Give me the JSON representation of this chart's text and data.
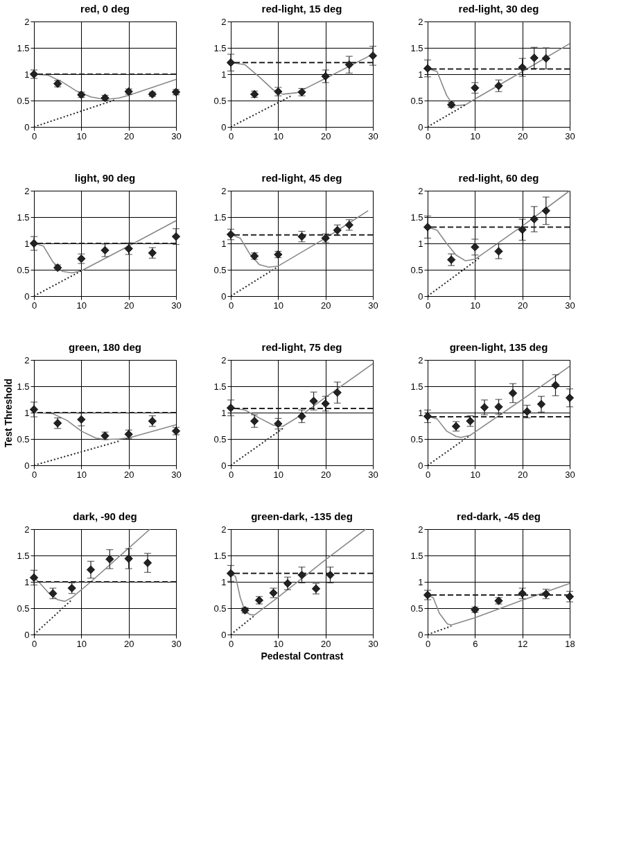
{
  "chart_data": [
    {
      "type": "scatter",
      "title": "red, 0 deg",
      "xlim": [
        0,
        30
      ],
      "xticks": [
        0,
        10,
        20,
        30
      ],
      "ylim": [
        0,
        2
      ],
      "yticks": [
        0,
        0.5,
        1,
        1.5,
        2
      ],
      "grid": true,
      "ref_lines": [
        {
          "axis": "y",
          "value": 1.0,
          "line_style": "dashed",
          "color": "#222222"
        }
      ],
      "series": [
        {
          "type": "line",
          "color": "#888888",
          "line_style": "solid",
          "marker": "none",
          "x": [
            0,
            3,
            6,
            9,
            12,
            15,
            18,
            20,
            25,
            30
          ],
          "values": [
            1,
            0.98,
            0.85,
            0.68,
            0.57,
            0.52,
            0.55,
            0.6,
            0.75,
            0.9
          ]
        },
        {
          "type": "line",
          "color": "#222222",
          "line_style": "dotted",
          "marker": "none",
          "x": [
            0,
            17
          ],
          "values": [
            0,
            0.51
          ]
        },
        {
          "color": "#222222",
          "marker": "diamond",
          "x": [
            0,
            5,
            10,
            15,
            20,
            25,
            30
          ],
          "values": [
            1.0,
            0.82,
            0.61,
            0.55,
            0.67,
            0.62,
            0.66
          ],
          "errors": [
            0.08,
            0.06,
            0.05,
            0.05,
            0.05,
            0.04,
            0.05
          ]
        }
      ]
    },
    {
      "type": "scatter",
      "title": "red-light, 15 deg",
      "xlim": [
        0,
        30
      ],
      "xticks": [
        0,
        10,
        20,
        30
      ],
      "ylim": [
        0,
        2
      ],
      "yticks": [
        0,
        0.5,
        1,
        1.5,
        2
      ],
      "grid": true,
      "ref_lines": [
        {
          "axis": "y",
          "value": 1.22,
          "line_style": "dashed",
          "color": "#222222"
        }
      ],
      "series": [
        {
          "type": "line",
          "color": "#888888",
          "line_style": "solid",
          "marker": "none",
          "x": [
            0,
            3,
            6,
            9,
            11,
            14,
            20,
            25,
            30
          ],
          "values": [
            1.22,
            1.18,
            0.95,
            0.7,
            0.62,
            0.65,
            0.92,
            1.15,
            1.38
          ]
        },
        {
          "type": "line",
          "color": "#222222",
          "line_style": "dotted",
          "marker": "none",
          "x": [
            0,
            13
          ],
          "values": [
            0,
            0.6
          ]
        },
        {
          "color": "#222222",
          "marker": "diamond",
          "x": [
            0,
            5,
            10,
            15,
            20,
            25,
            30
          ],
          "values": [
            1.22,
            0.62,
            0.67,
            0.66,
            0.96,
            1.18,
            1.35
          ],
          "errors": [
            0.16,
            0.06,
            0.08,
            0.07,
            0.12,
            0.16,
            0.18
          ]
        }
      ]
    },
    {
      "type": "scatter",
      "title": "red-light, 30 deg",
      "xlim": [
        0,
        30
      ],
      "xticks": [
        0,
        10,
        20,
        30
      ],
      "ylim": [
        0,
        2
      ],
      "yticks": [
        0,
        0.5,
        1,
        1.5,
        2
      ],
      "grid": true,
      "ref_lines": [
        {
          "axis": "y",
          "value": 1.1,
          "line_style": "dashed",
          "color": "#222222"
        }
      ],
      "series": [
        {
          "type": "line",
          "color": "#888888",
          "line_style": "solid",
          "marker": "none",
          "x": [
            0,
            2,
            4,
            5.5,
            8,
            10,
            20,
            30
          ],
          "values": [
            1.11,
            1.05,
            0.6,
            0.4,
            0.42,
            0.53,
            1.05,
            1.58
          ]
        },
        {
          "type": "line",
          "color": "#222222",
          "line_style": "dotted",
          "marker": "none",
          "x": [
            0,
            8
          ],
          "values": [
            0,
            0.42
          ]
        },
        {
          "color": "#222222",
          "marker": "diamond",
          "x": [
            0,
            5,
            10,
            15,
            20,
            22.5,
            25
          ],
          "values": [
            1.11,
            0.42,
            0.74,
            0.78,
            1.13,
            1.31,
            1.3
          ],
          "errors": [
            0.16,
            0.05,
            0.1,
            0.11,
            0.17,
            0.2,
            0.2
          ]
        }
      ]
    },
    {
      "type": "scatter",
      "title": "light, 90 deg",
      "xlim": [
        0,
        30
      ],
      "xticks": [
        0,
        10,
        20,
        30
      ],
      "ylim": [
        0,
        2
      ],
      "yticks": [
        0,
        0.5,
        1,
        1.5,
        2
      ],
      "grid": true,
      "ref_lines": [
        {
          "axis": "y",
          "value": 1.0,
          "line_style": "dashed",
          "color": "#222222"
        }
      ],
      "series": [
        {
          "type": "line",
          "color": "#888888",
          "line_style": "solid",
          "marker": "none",
          "x": [
            0,
            2,
            4,
            6,
            8,
            10,
            20,
            30
          ],
          "values": [
            1,
            0.95,
            0.65,
            0.47,
            0.44,
            0.48,
            0.95,
            1.43
          ]
        },
        {
          "type": "line",
          "color": "#222222",
          "line_style": "dotted",
          "marker": "none",
          "x": [
            0,
            10
          ],
          "values": [
            0,
            0.48
          ]
        },
        {
          "color": "#222222",
          "marker": "diamond",
          "x": [
            0,
            5,
            10,
            15,
            20,
            25,
            30
          ],
          "values": [
            1.0,
            0.54,
            0.71,
            0.87,
            0.9,
            0.82,
            1.13
          ],
          "errors": [
            0.13,
            0.05,
            0.09,
            0.12,
            0.11,
            0.1,
            0.15
          ]
        }
      ]
    },
    {
      "type": "scatter",
      "title": "red-light, 45 deg",
      "xlim": [
        0,
        30
      ],
      "xticks": [
        0,
        10,
        20,
        30
      ],
      "ylim": [
        0,
        2
      ],
      "yticks": [
        0,
        0.5,
        1,
        1.5,
        2
      ],
      "grid": true,
      "ref_lines": [
        {
          "axis": "y",
          "value": 1.16,
          "line_style": "dashed",
          "color": "#222222"
        }
      ],
      "series": [
        {
          "type": "line",
          "color": "#888888",
          "line_style": "solid",
          "marker": "none",
          "x": [
            0,
            2,
            4,
            6,
            8,
            10,
            20,
            29
          ],
          "values": [
            1.17,
            1.1,
            0.8,
            0.6,
            0.55,
            0.57,
            1.1,
            1.62
          ]
        },
        {
          "type": "line",
          "color": "#222222",
          "line_style": "dotted",
          "marker": "none",
          "x": [
            0,
            10
          ],
          "values": [
            0,
            0.56
          ]
        },
        {
          "color": "#222222",
          "marker": "diamond",
          "x": [
            0,
            5,
            10,
            15,
            20,
            22.5,
            25
          ],
          "values": [
            1.17,
            0.76,
            0.79,
            1.13,
            1.1,
            1.25,
            1.35
          ],
          "errors": [
            0.1,
            0.06,
            0.06,
            0.1,
            0.08,
            0.1,
            0.1
          ]
        }
      ]
    },
    {
      "type": "scatter",
      "title": "red-light, 60 deg",
      "xlim": [
        0,
        30
      ],
      "xticks": [
        0,
        10,
        20,
        30
      ],
      "ylim": [
        0,
        2
      ],
      "yticks": [
        0,
        0.5,
        1,
        1.5,
        2
      ],
      "grid": true,
      "ref_lines": [
        {
          "axis": "y",
          "value": 1.31,
          "line_style": "dashed",
          "color": "#222222"
        }
      ],
      "series": [
        {
          "type": "line",
          "color": "#888888",
          "line_style": "solid",
          "marker": "none",
          "x": [
            0,
            2,
            4,
            6,
            8,
            10,
            20,
            30
          ],
          "values": [
            1.31,
            1.25,
            1.0,
            0.78,
            0.67,
            0.7,
            1.33,
            2.0
          ]
        },
        {
          "type": "line",
          "color": "#222222",
          "line_style": "dotted",
          "marker": "none",
          "x": [
            0,
            11
          ],
          "values": [
            0,
            0.73
          ]
        },
        {
          "color": "#222222",
          "marker": "diamond",
          "x": [
            0,
            5,
            10,
            15,
            20,
            22.5,
            25
          ],
          "values": [
            1.31,
            0.69,
            0.93,
            0.85,
            1.26,
            1.46,
            1.62
          ],
          "errors": [
            0.21,
            0.11,
            0.15,
            0.14,
            0.2,
            0.24,
            0.26
          ]
        }
      ]
    },
    {
      "type": "scatter",
      "title": "green, 180 deg",
      "ylabel": "Test Threshold",
      "xlim": [
        0,
        30
      ],
      "xticks": [
        0,
        10,
        20,
        30
      ],
      "ylim": [
        0,
        2
      ],
      "yticks": [
        0,
        0.5,
        1,
        1.5,
        2
      ],
      "grid": true,
      "ref_lines": [
        {
          "axis": "y",
          "value": 1.0,
          "line_style": "dashed",
          "color": "#222222"
        }
      ],
      "series": [
        {
          "type": "line",
          "color": "#888888",
          "line_style": "solid",
          "marker": "none",
          "x": [
            0,
            4,
            7,
            10,
            13,
            15,
            18,
            20,
            30
          ],
          "values": [
            1,
            0.98,
            0.85,
            0.65,
            0.52,
            0.49,
            0.5,
            0.52,
            0.77
          ]
        },
        {
          "type": "line",
          "color": "#222222",
          "line_style": "dotted",
          "marker": "none",
          "x": [
            0,
            18
          ],
          "values": [
            0,
            0.46
          ]
        },
        {
          "color": "#222222",
          "marker": "diamond",
          "x": [
            0,
            5,
            10,
            15,
            20,
            25,
            30
          ],
          "values": [
            1.06,
            0.8,
            0.87,
            0.56,
            0.59,
            0.84,
            0.65
          ],
          "errors": [
            0.14,
            0.1,
            0.12,
            0.07,
            0.08,
            0.1,
            0.07
          ]
        }
      ]
    },
    {
      "type": "scatter",
      "title": "red-light, 75 deg",
      "xlim": [
        0,
        30
      ],
      "xticks": [
        0,
        10,
        20,
        30
      ],
      "ylim": [
        0,
        2
      ],
      "yticks": [
        0,
        0.5,
        1,
        1.5,
        2
      ],
      "grid": true,
      "ref_lines": [
        {
          "axis": "y",
          "value": 1.08,
          "line_style": "dashed",
          "color": "#222222"
        }
      ],
      "series": [
        {
          "type": "line",
          "color": "#888888",
          "line_style": "solid",
          "marker": "none",
          "x": [
            0,
            3,
            6,
            9,
            11,
            15,
            20,
            30
          ],
          "values": [
            1.09,
            1.05,
            0.9,
            0.76,
            0.74,
            0.96,
            1.29,
            1.93
          ]
        },
        {
          "type": "line",
          "color": "#222222",
          "line_style": "dotted",
          "marker": "none",
          "x": [
            0,
            11
          ],
          "values": [
            0,
            0.7
          ]
        },
        {
          "color": "#222222",
          "marker": "diamond",
          "x": [
            0,
            5,
            10,
            15,
            17.5,
            20,
            22.5
          ],
          "values": [
            1.09,
            0.84,
            0.79,
            0.93,
            1.22,
            1.17,
            1.38
          ],
          "errors": [
            0.15,
            0.12,
            0.1,
            0.12,
            0.17,
            0.14,
            0.2
          ]
        }
      ]
    },
    {
      "type": "scatter",
      "title": "green-light, 135 deg",
      "xlim": [
        0,
        30
      ],
      "xticks": [
        0,
        10,
        20,
        30
      ],
      "ylim": [
        0,
        2
      ],
      "yticks": [
        0,
        0.5,
        1,
        1.5,
        2
      ],
      "grid": true,
      "ref_lines": [
        {
          "axis": "y",
          "value": 0.92,
          "line_style": "dashed",
          "color": "#222222"
        }
      ],
      "series": [
        {
          "type": "line",
          "color": "#888888",
          "line_style": "solid",
          "marker": "none",
          "x": [
            0,
            2,
            4,
            6,
            7,
            9,
            20,
            30
          ],
          "values": [
            0.93,
            0.88,
            0.65,
            0.55,
            0.53,
            0.57,
            1.25,
            1.88
          ]
        },
        {
          "type": "line",
          "color": "#222222",
          "line_style": "dotted",
          "marker": "none",
          "x": [
            0,
            9
          ],
          "values": [
            0,
            0.57
          ]
        },
        {
          "color": "#222222",
          "marker": "diamond",
          "x": [
            0,
            6,
            9,
            12,
            15,
            18,
            21,
            24,
            27,
            30
          ],
          "values": [
            0.93,
            0.74,
            0.84,
            1.1,
            1.11,
            1.37,
            1.02,
            1.16,
            1.52,
            1.28
          ],
          "errors": [
            0.12,
            0.09,
            0.1,
            0.14,
            0.14,
            0.18,
            0.12,
            0.15,
            0.2,
            0.17
          ]
        }
      ]
    },
    {
      "type": "scatter",
      "title": "dark, -90 deg",
      "xlim": [
        0,
        30
      ],
      "xticks": [
        0,
        10,
        20,
        30
      ],
      "ylim": [
        0,
        2
      ],
      "yticks": [
        0,
        0.5,
        1,
        1.5,
        2
      ],
      "grid": true,
      "ref_lines": [
        {
          "axis": "y",
          "value": 1.0,
          "line_style": "dashed",
          "color": "#222222"
        }
      ],
      "series": [
        {
          "type": "line",
          "color": "#888888",
          "line_style": "solid",
          "marker": "none",
          "x": [
            0,
            1,
            3,
            5,
            6.5,
            8,
            12,
            20,
            24.5
          ],
          "values": [
            1.08,
            1.0,
            0.8,
            0.66,
            0.63,
            0.7,
            1.0,
            1.64,
            2.0
          ]
        },
        {
          "type": "line",
          "color": "#222222",
          "line_style": "dotted",
          "marker": "none",
          "x": [
            0,
            8
          ],
          "values": [
            0,
            0.66
          ]
        },
        {
          "color": "#222222",
          "marker": "diamond",
          "x": [
            0,
            4,
            8,
            12,
            16,
            20,
            24
          ],
          "values": [
            1.08,
            0.78,
            0.88,
            1.23,
            1.43,
            1.44,
            1.36
          ],
          "errors": [
            0.14,
            0.1,
            0.1,
            0.16,
            0.18,
            0.19,
            0.18
          ]
        }
      ]
    },
    {
      "type": "scatter",
      "title": "green-dark, -135 deg",
      "xlabel": "Pedestal Contrast",
      "xlim": [
        0,
        30
      ],
      "xticks": [
        0,
        10,
        20,
        30
      ],
      "ylim": [
        0,
        2
      ],
      "yticks": [
        0,
        0.5,
        1,
        1.5,
        2
      ],
      "grid": true,
      "ref_lines": [
        {
          "axis": "y",
          "value": 1.16,
          "line_style": "dashed",
          "color": "#222222"
        }
      ],
      "series": [
        {
          "type": "line",
          "color": "#888888",
          "line_style": "solid",
          "marker": "none",
          "x": [
            0,
            1,
            2,
            3,
            4,
            5,
            10,
            20,
            28.5
          ],
          "values": [
            1.16,
            1.1,
            0.7,
            0.45,
            0.38,
            0.37,
            0.71,
            1.42,
            2.0
          ]
        },
        {
          "type": "line",
          "color": "#222222",
          "line_style": "dotted",
          "marker": "none",
          "x": [
            0,
            5
          ],
          "values": [
            0,
            0.36
          ]
        },
        {
          "color": "#222222",
          "marker": "diamond",
          "x": [
            0,
            3,
            6,
            9,
            12,
            15,
            18,
            21
          ],
          "values": [
            1.16,
            0.46,
            0.65,
            0.79,
            0.97,
            1.13,
            0.87,
            1.13
          ],
          "errors": [
            0.15,
            0.05,
            0.07,
            0.09,
            0.12,
            0.15,
            0.1,
            0.15
          ]
        }
      ]
    },
    {
      "type": "scatter",
      "title": "red-dark, -45 deg",
      "xlim": [
        0,
        18
      ],
      "xticks": [
        0,
        6,
        12,
        18
      ],
      "ylim": [
        0,
        2
      ],
      "yticks": [
        0,
        0.5,
        1,
        1.5,
        2
      ],
      "grid": true,
      "ref_lines": [
        {
          "axis": "y",
          "value": 0.75,
          "line_style": "dashed",
          "color": "#222222"
        }
      ],
      "series": [
        {
          "type": "line",
          "color": "#888888",
          "line_style": "solid",
          "marker": "none",
          "x": [
            0,
            0.7,
            1.5,
            2.5,
            3,
            6,
            12,
            18
          ],
          "values": [
            0.75,
            0.7,
            0.4,
            0.2,
            0.18,
            0.32,
            0.65,
            0.97
          ]
        },
        {
          "type": "line",
          "color": "#222222",
          "line_style": "dotted",
          "marker": "none",
          "x": [
            0,
            3
          ],
          "values": [
            0,
            0.16
          ]
        },
        {
          "color": "#222222",
          "marker": "diamond",
          "x": [
            0,
            6,
            9,
            12,
            15,
            18
          ],
          "values": [
            0.75,
            0.47,
            0.64,
            0.78,
            0.77,
            0.72
          ],
          "errors": [
            0.09,
            0.05,
            0.06,
            0.1,
            0.09,
            0.1
          ]
        }
      ]
    }
  ]
}
